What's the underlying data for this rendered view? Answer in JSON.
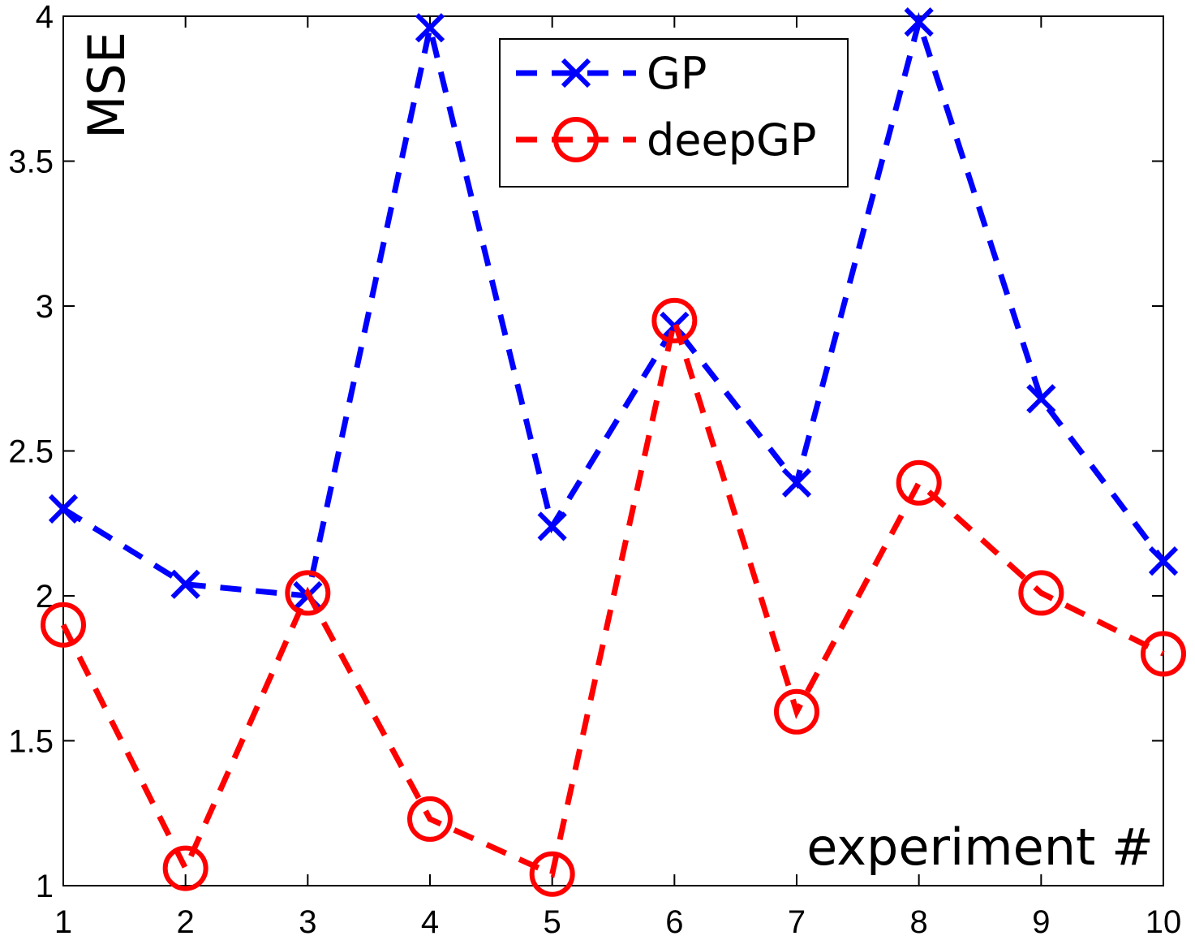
{
  "chart_data": {
    "type": "line",
    "x": [
      1,
      2,
      3,
      4,
      5,
      6,
      7,
      8,
      9,
      10
    ],
    "xticks": [
      "1",
      "2",
      "3",
      "4",
      "5",
      "6",
      "7",
      "8",
      "9",
      "10"
    ],
    "yticks": [
      "1",
      "1.5",
      "2",
      "2.5",
      "3",
      "3.5",
      "4"
    ],
    "xlim": [
      1,
      10
    ],
    "ylim": [
      1,
      4
    ],
    "xlabel": "experiment #",
    "ylabel": "MSE",
    "title": "",
    "grid": false,
    "legend_position": "top-center",
    "series": [
      {
        "name": "GP",
        "color": "#0000ff",
        "marker": "x",
        "line_style": "dashed",
        "values": [
          2.3,
          2.04,
          2.0,
          3.96,
          2.24,
          2.93,
          2.39,
          3.98,
          2.68,
          2.12
        ]
      },
      {
        "name": "deepGP",
        "color": "#ff0000",
        "marker": "circle",
        "line_style": "dashed",
        "values": [
          1.9,
          1.06,
          2.01,
          1.23,
          1.04,
          2.95,
          1.6,
          2.39,
          2.01,
          1.8
        ]
      }
    ]
  }
}
